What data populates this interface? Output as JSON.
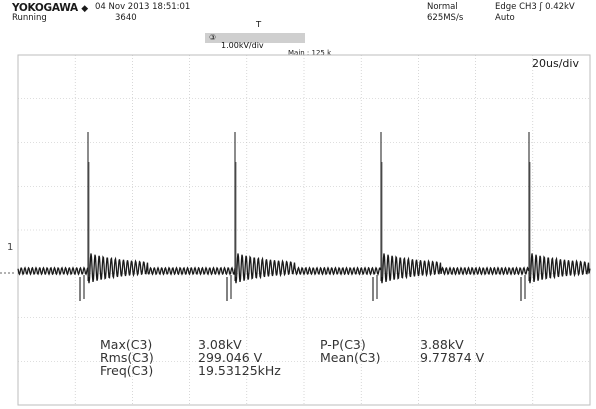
{
  "header": {
    "brand": "YOKOGAWA",
    "status": "Running",
    "date_time": "04 Nov 2013 18:51:01",
    "acq_count": "3640",
    "acq_mode": "Normal",
    "sample_rate": "625MS/s",
    "trigger": "Edge CH3 ʃ 0.42kV",
    "trigger_mode": "Auto",
    "channel_scale": "1.00kV/div",
    "main_label": "Main : 125 k",
    "timebase": "20us/div",
    "ground_marker": "1"
  },
  "measurements": {
    "col1_labels": [
      "Max(C3)",
      "Rms(C3)",
      "Freq(C3)"
    ],
    "col1_values": [
      "3.08kV",
      "299.046  V",
      "19.53125kHz"
    ],
    "col2_labels": [
      "P-P(C3)",
      "Mean(C3)"
    ],
    "col2_values": [
      "3.88kV",
      "9.77874  V"
    ]
  },
  "colors": {
    "grid": "#bdbdbd",
    "trace": "#1a1a1a",
    "text": "#1a1a1a"
  },
  "icons": [
    "diamond-icon",
    "trigger-edge-icon",
    "channel-3-icon",
    "trigger-position-icon",
    "ground-level-icon"
  ]
}
